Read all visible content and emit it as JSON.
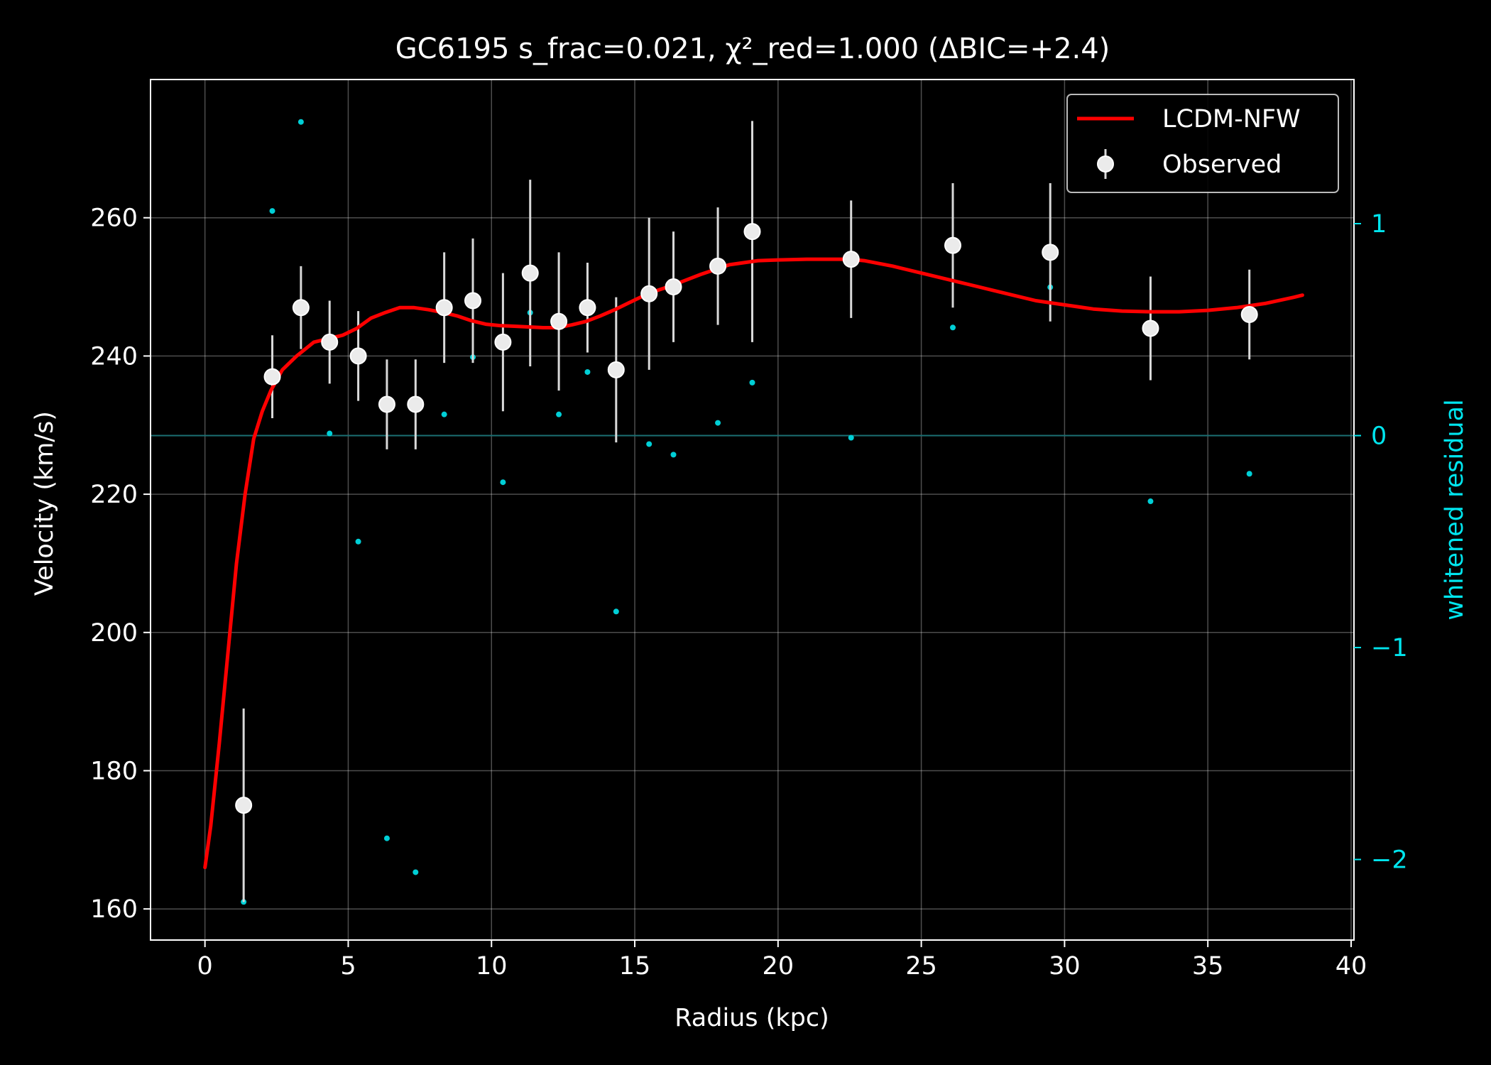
{
  "chart_data": {
    "type": "scatter",
    "title": "GC6195  s_frac=0.021, χ²_red=1.000  (ΔBIC=+2.4)",
    "xlabel": "Radius (kpc)",
    "ylabel": "Velocity (km/s)",
    "y2label": "whitened residual",
    "xlim": [
      -1.9,
      40.1
    ],
    "ylim": [
      155.5,
      280.0
    ],
    "y2lim": [
      -2.38,
      1.68
    ],
    "xticks": [
      0,
      5,
      10,
      15,
      20,
      25,
      30,
      35,
      40
    ],
    "yticks": [
      160,
      180,
      200,
      220,
      240,
      260
    ],
    "y2ticks": [
      -2,
      -1,
      0,
      1
    ],
    "grid": true,
    "legend_position": "top-right",
    "colors": {
      "background": "#000000",
      "model": "#ff0000",
      "observed": "#ebebeb",
      "residual": "#00cfd6",
      "axis": "#ffffff",
      "residual_axis": "#00e5ee"
    },
    "series": [
      {
        "name": "LCDM-NFW",
        "kind": "line",
        "x": [
          0.0,
          0.2,
          0.5,
          0.8,
          1.1,
          1.4,
          1.7,
          2.0,
          2.3,
          2.7,
          3.2,
          3.8,
          4.3,
          4.8,
          5.3,
          5.8,
          6.3,
          6.8,
          7.3,
          7.8,
          8.3,
          8.8,
          9.3,
          9.8,
          10.3,
          10.8,
          11.3,
          11.8,
          12.3,
          12.8,
          13.3,
          13.8,
          14.3,
          14.8,
          15.3,
          15.8,
          16.3,
          16.8,
          17.3,
          17.8,
          18.3,
          18.8,
          19.3,
          20.0,
          21.0,
          22.0,
          22.5,
          23.0,
          24.0,
          25.0,
          26.0,
          27.0,
          28.0,
          29.0,
          30.0,
          31.0,
          32.0,
          33.0,
          34.0,
          35.0,
          36.0,
          37.0,
          38.0,
          38.3
        ],
        "values": [
          166,
          172,
          184,
          197,
          210,
          220,
          228,
          232,
          235,
          238,
          240,
          242,
          242.5,
          243,
          244,
          245.5,
          246.3,
          247,
          247,
          246.7,
          246.3,
          245.8,
          245.1,
          244.6,
          244.4,
          244.3,
          244.2,
          244.1,
          244.1,
          244.5,
          245,
          245.8,
          246.7,
          247.7,
          248.7,
          249.5,
          250.2,
          251,
          251.8,
          252.5,
          253.2,
          253.5,
          253.8,
          253.9,
          254,
          254,
          254,
          253.8,
          253,
          252,
          251,
          250,
          249,
          248,
          247.4,
          246.8,
          246.5,
          246.4,
          246.4,
          246.6,
          247,
          247.6,
          248.5,
          248.8
        ]
      },
      {
        "name": "Observed",
        "kind": "errorbar",
        "x": [
          1.35,
          2.35,
          3.35,
          4.35,
          5.35,
          6.35,
          7.35,
          8.35,
          9.35,
          10.4,
          11.35,
          12.35,
          13.35,
          14.35,
          15.5,
          16.35,
          17.9,
          19.1,
          22.55,
          26.1,
          29.5,
          33.0,
          36.45
        ],
        "values": [
          175,
          237,
          247,
          242,
          240,
          233,
          233,
          247,
          248,
          242,
          252,
          245,
          247,
          238,
          249,
          250,
          253,
          258,
          254,
          256,
          255,
          244,
          246
        ],
        "errors": [
          14,
          6,
          6,
          6,
          6.5,
          6.5,
          6.5,
          8,
          9,
          10,
          13.5,
          10,
          6.5,
          10.5,
          11,
          8,
          8.5,
          16,
          8.5,
          9,
          10,
          7.5,
          6.5
        ]
      },
      {
        "kind": "scatter",
        "axis": "y2",
        "x": [
          1.35,
          2.35,
          3.35,
          4.35,
          5.35,
          6.35,
          7.35,
          8.35,
          9.35,
          10.4,
          11.35,
          12.35,
          13.35,
          14.35,
          15.5,
          16.35,
          17.9,
          19.1,
          22.55,
          26.1,
          29.5,
          33.0,
          36.45
        ],
        "values": [
          -2.2,
          1.06,
          1.48,
          0.01,
          -0.5,
          -1.9,
          -2.06,
          0.1,
          0.37,
          -0.22,
          0.58,
          0.1,
          0.3,
          -0.83,
          -0.04,
          -0.09,
          0.06,
          0.25,
          -0.01,
          0.51,
          0.7,
          -0.31,
          -0.18
        ]
      }
    ]
  }
}
